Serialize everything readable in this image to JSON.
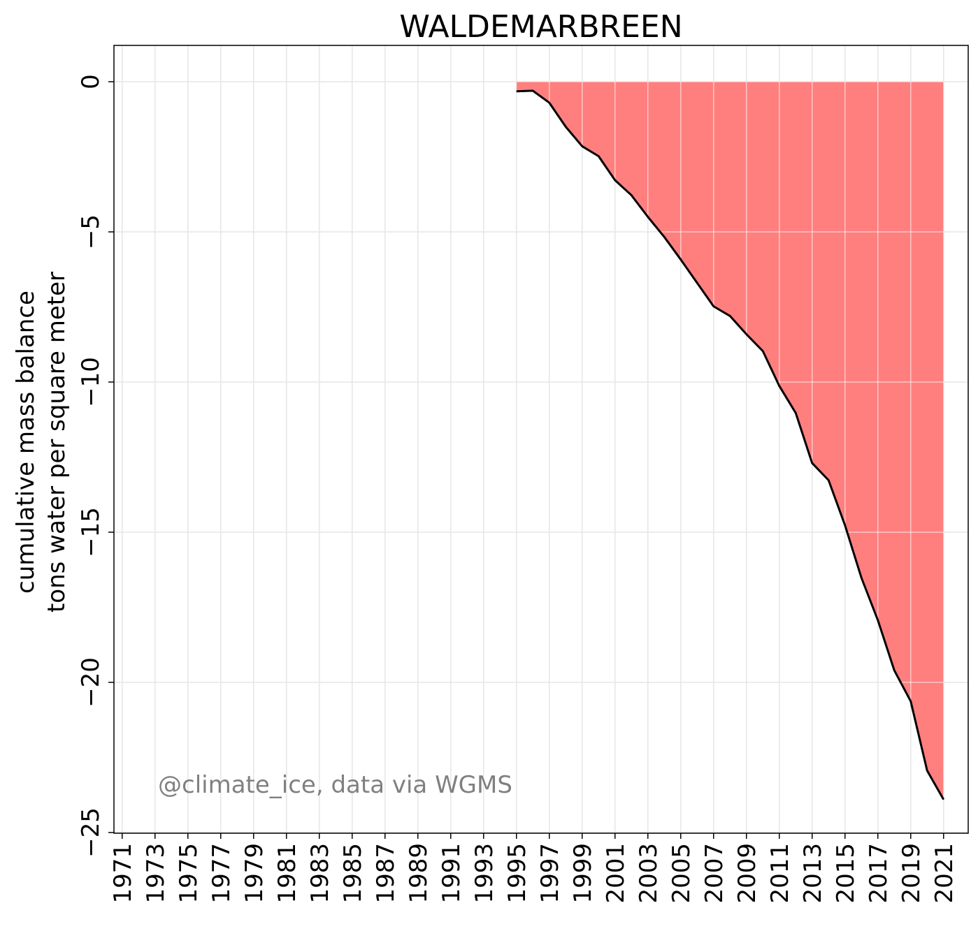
{
  "chart_data": {
    "type": "area",
    "title": "WALDEMARBREEN",
    "ylabel_lines": [
      "cumulative mass balance",
      "tons water per square meter"
    ],
    "xlabel": "",
    "annotation": "@climate_ice, data via WGMS",
    "x_ticks": [
      1971,
      1973,
      1975,
      1977,
      1979,
      1981,
      1983,
      1985,
      1987,
      1989,
      1991,
      1993,
      1995,
      1997,
      1999,
      2001,
      2003,
      2005,
      2007,
      2009,
      2011,
      2013,
      2015,
      2017,
      2019,
      2021
    ],
    "y_ticks": [
      0,
      -5,
      -10,
      -15,
      -20,
      -25
    ],
    "xlim": [
      1970.5,
      2022.5
    ],
    "ylim": [
      -25,
      1.2
    ],
    "grid": true,
    "fill_color": "#ff7f7f",
    "line_color": "#000000",
    "series": [
      {
        "x": [
          1995,
          1996,
          1997,
          1998,
          1999,
          2000,
          2001,
          2002,
          2003,
          2004,
          2005,
          2006,
          2007,
          2008,
          2009,
          2010,
          2011,
          2012,
          2013,
          2014,
          2015,
          2016,
          2017,
          2018,
          2019,
          2020,
          2021
        ],
        "values": [
          -0.32,
          -0.3,
          -0.7,
          -1.5,
          -2.15,
          -2.48,
          -3.28,
          -3.78,
          -4.5,
          -5.17,
          -5.92,
          -6.7,
          -7.48,
          -7.8,
          -8.41,
          -8.97,
          -10.13,
          -11.03,
          -12.7,
          -13.27,
          -14.77,
          -16.52,
          -17.93,
          -19.6,
          -20.63,
          -22.94,
          -23.9
        ]
      }
    ]
  }
}
